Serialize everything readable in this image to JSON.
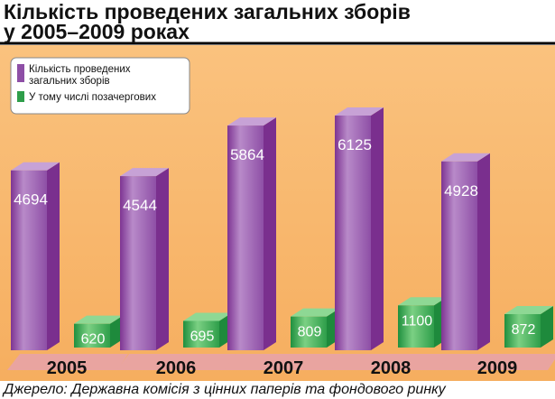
{
  "chart_data": {
    "type": "bar",
    "title": "Кількість проведених загальних зборів",
    "subtitle": "у 2005–2009 роках",
    "categories": [
      "2005",
      "2006",
      "2007",
      "2008",
      "2009"
    ],
    "series": [
      {
        "name": "Кількість проведених загальних зборів",
        "values": [
          4694,
          4544,
          5864,
          6125,
          4928
        ]
      },
      {
        "name": "У тому числі позачергових",
        "values": [
          620,
          695,
          809,
          1100,
          872
        ]
      }
    ],
    "legend_position": "top-left",
    "grid": false,
    "colors": {
      "background": "#F9B76C",
      "series1_light": "#A879C0",
      "series1_dark": "#7A2F8E",
      "series2_light": "#5BC46C",
      "series2_dark": "#1E8A3C",
      "base_shadow": "#E9A4A0",
      "title": "#111111"
    }
  },
  "source": "Джерело: Державна комісія з цінних паперів та фондового ринку"
}
